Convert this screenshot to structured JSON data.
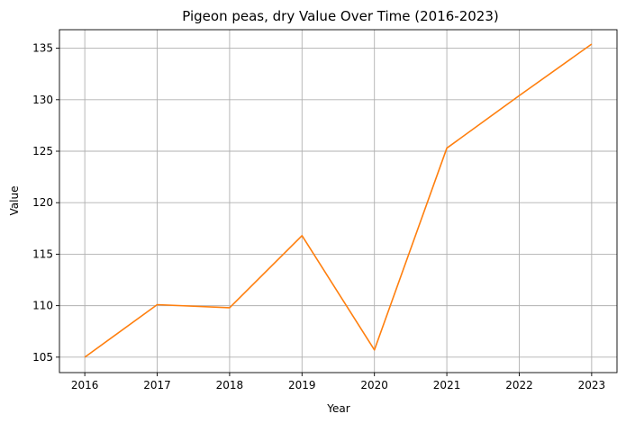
{
  "chart_data": {
    "type": "line",
    "title": "Pigeon peas, dry Value Over Time (2016-2023)",
    "xlabel": "Year",
    "ylabel": "Value",
    "x": [
      2016,
      2017,
      2018,
      2019,
      2020,
      2021,
      2022,
      2023
    ],
    "series": [
      {
        "values": [
          105.0,
          110.1,
          109.8,
          116.8,
          105.7,
          125.3,
          130.4,
          135.4
        ],
        "color": "#ff7f0e"
      }
    ],
    "xlim": [
      2015.65,
      2023.35
    ],
    "ylim": [
      103.5,
      136.8
    ],
    "yticks": [
      105,
      110,
      115,
      120,
      125,
      130,
      135
    ],
    "grid": true
  }
}
